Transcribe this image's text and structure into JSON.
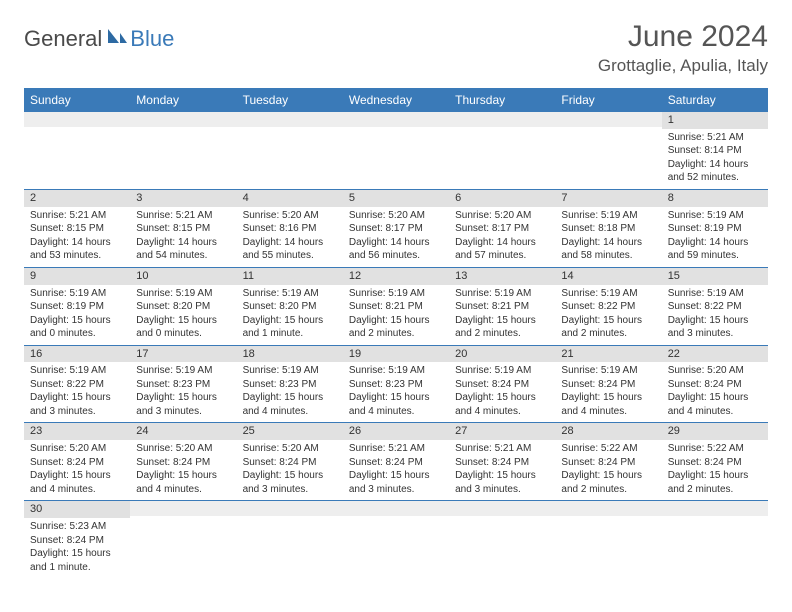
{
  "logo": {
    "text1": "General",
    "text2": "Blue"
  },
  "title": "June 2024",
  "location": "Grottaglie, Apulia, Italy",
  "colors": {
    "header_bg": "#3a7ab8",
    "header_text": "#ffffff",
    "daynum_bg": "#e1e1e1",
    "empty_bg": "#eeeeee",
    "row_border": "#3a7ab8",
    "body_text": "#333333",
    "title_text": "#555555"
  },
  "weekdays": [
    "Sunday",
    "Monday",
    "Tuesday",
    "Wednesday",
    "Thursday",
    "Friday",
    "Saturday"
  ],
  "weeks": [
    [
      null,
      null,
      null,
      null,
      null,
      null,
      {
        "n": 1,
        "sr": "5:21 AM",
        "ss": "8:14 PM",
        "dl": "14 hours and 52 minutes."
      }
    ],
    [
      {
        "n": 2,
        "sr": "5:21 AM",
        "ss": "8:15 PM",
        "dl": "14 hours and 53 minutes."
      },
      {
        "n": 3,
        "sr": "5:21 AM",
        "ss": "8:15 PM",
        "dl": "14 hours and 54 minutes."
      },
      {
        "n": 4,
        "sr": "5:20 AM",
        "ss": "8:16 PM",
        "dl": "14 hours and 55 minutes."
      },
      {
        "n": 5,
        "sr": "5:20 AM",
        "ss": "8:17 PM",
        "dl": "14 hours and 56 minutes."
      },
      {
        "n": 6,
        "sr": "5:20 AM",
        "ss": "8:17 PM",
        "dl": "14 hours and 57 minutes."
      },
      {
        "n": 7,
        "sr": "5:19 AM",
        "ss": "8:18 PM",
        "dl": "14 hours and 58 minutes."
      },
      {
        "n": 8,
        "sr": "5:19 AM",
        "ss": "8:19 PM",
        "dl": "14 hours and 59 minutes."
      }
    ],
    [
      {
        "n": 9,
        "sr": "5:19 AM",
        "ss": "8:19 PM",
        "dl": "15 hours and 0 minutes."
      },
      {
        "n": 10,
        "sr": "5:19 AM",
        "ss": "8:20 PM",
        "dl": "15 hours and 0 minutes."
      },
      {
        "n": 11,
        "sr": "5:19 AM",
        "ss": "8:20 PM",
        "dl": "15 hours and 1 minute."
      },
      {
        "n": 12,
        "sr": "5:19 AM",
        "ss": "8:21 PM",
        "dl": "15 hours and 2 minutes."
      },
      {
        "n": 13,
        "sr": "5:19 AM",
        "ss": "8:21 PM",
        "dl": "15 hours and 2 minutes."
      },
      {
        "n": 14,
        "sr": "5:19 AM",
        "ss": "8:22 PM",
        "dl": "15 hours and 2 minutes."
      },
      {
        "n": 15,
        "sr": "5:19 AM",
        "ss": "8:22 PM",
        "dl": "15 hours and 3 minutes."
      }
    ],
    [
      {
        "n": 16,
        "sr": "5:19 AM",
        "ss": "8:22 PM",
        "dl": "15 hours and 3 minutes."
      },
      {
        "n": 17,
        "sr": "5:19 AM",
        "ss": "8:23 PM",
        "dl": "15 hours and 3 minutes."
      },
      {
        "n": 18,
        "sr": "5:19 AM",
        "ss": "8:23 PM",
        "dl": "15 hours and 4 minutes."
      },
      {
        "n": 19,
        "sr": "5:19 AM",
        "ss": "8:23 PM",
        "dl": "15 hours and 4 minutes."
      },
      {
        "n": 20,
        "sr": "5:19 AM",
        "ss": "8:24 PM",
        "dl": "15 hours and 4 minutes."
      },
      {
        "n": 21,
        "sr": "5:19 AM",
        "ss": "8:24 PM",
        "dl": "15 hours and 4 minutes."
      },
      {
        "n": 22,
        "sr": "5:20 AM",
        "ss": "8:24 PM",
        "dl": "15 hours and 4 minutes."
      }
    ],
    [
      {
        "n": 23,
        "sr": "5:20 AM",
        "ss": "8:24 PM",
        "dl": "15 hours and 4 minutes."
      },
      {
        "n": 24,
        "sr": "5:20 AM",
        "ss": "8:24 PM",
        "dl": "15 hours and 4 minutes."
      },
      {
        "n": 25,
        "sr": "5:20 AM",
        "ss": "8:24 PM",
        "dl": "15 hours and 3 minutes."
      },
      {
        "n": 26,
        "sr": "5:21 AM",
        "ss": "8:24 PM",
        "dl": "15 hours and 3 minutes."
      },
      {
        "n": 27,
        "sr": "5:21 AM",
        "ss": "8:24 PM",
        "dl": "15 hours and 3 minutes."
      },
      {
        "n": 28,
        "sr": "5:22 AM",
        "ss": "8:24 PM",
        "dl": "15 hours and 2 minutes."
      },
      {
        "n": 29,
        "sr": "5:22 AM",
        "ss": "8:24 PM",
        "dl": "15 hours and 2 minutes."
      }
    ],
    [
      {
        "n": 30,
        "sr": "5:23 AM",
        "ss": "8:24 PM",
        "dl": "15 hours and 1 minute."
      },
      null,
      null,
      null,
      null,
      null,
      null
    ]
  ],
  "labels": {
    "sunrise": "Sunrise:",
    "sunset": "Sunset:",
    "daylight": "Daylight:"
  }
}
